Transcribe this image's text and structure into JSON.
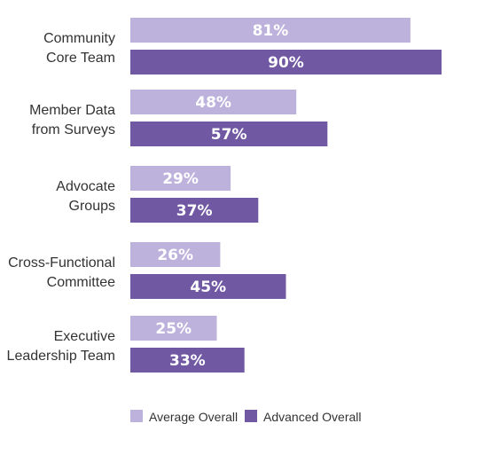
{
  "chart_data": {
    "type": "bar",
    "orientation": "horizontal",
    "categories": [
      [
        "Community",
        "Core Team"
      ],
      [
        "Member Data",
        "from Surveys"
      ],
      [
        "Advocate",
        "Groups"
      ],
      [
        "Cross-Functional",
        "Committee"
      ],
      [
        "Executive",
        "Leadership Team"
      ]
    ],
    "series": [
      {
        "name": "Average Overall",
        "color": "#bdb2dc",
        "values": [
          81,
          48,
          29,
          26,
          25
        ],
        "labels": [
          "81%",
          "48%",
          "29%",
          "26%",
          "25%"
        ]
      },
      {
        "name": "Advanced Overall",
        "color": "#7058a3",
        "values": [
          90,
          57,
          37,
          45,
          33
        ],
        "labels": [
          "90%",
          "57%",
          "37%",
          "45%",
          "33%"
        ]
      }
    ],
    "xlim": [
      0,
      90
    ],
    "grid": false,
    "legend_position": "bottom"
  }
}
